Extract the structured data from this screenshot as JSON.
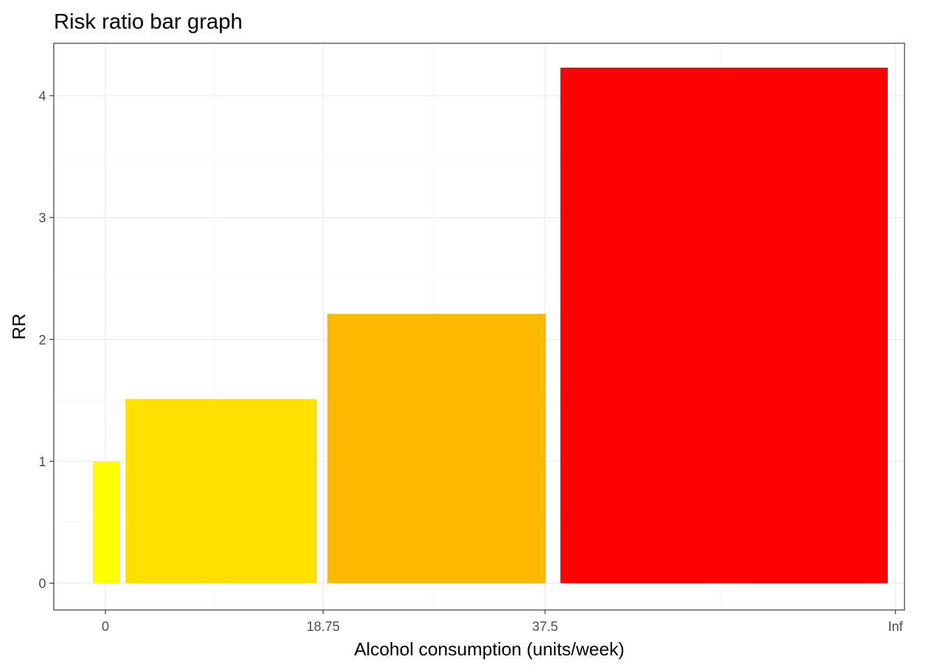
{
  "chart_data": {
    "type": "bar",
    "title": "Risk ratio bar graph",
    "xlabel": "Alcohol consumption (units/week)",
    "ylabel": "RR",
    "x_tick_labels": [
      "0",
      "18.75",
      "37.5",
      "Inf"
    ],
    "y_ticks": [
      0,
      1,
      2,
      3,
      4
    ],
    "ylim": [
      -0.22,
      4.43
    ],
    "grid": true,
    "legend": "none",
    "bars": [
      {
        "x_start": 0,
        "x_end": 0,
        "value": 1.0,
        "color": "#FFFF00"
      },
      {
        "x_start": 0,
        "x_end": 18.75,
        "value": 1.51,
        "color": "#FFE000"
      },
      {
        "x_start": 18.75,
        "x_end": 37.5,
        "value": 2.21,
        "color": "#FFBA00"
      },
      {
        "x_start": 37.5,
        "x_end": "Inf",
        "value": 4.23,
        "color": "#FF0000"
      }
    ]
  }
}
